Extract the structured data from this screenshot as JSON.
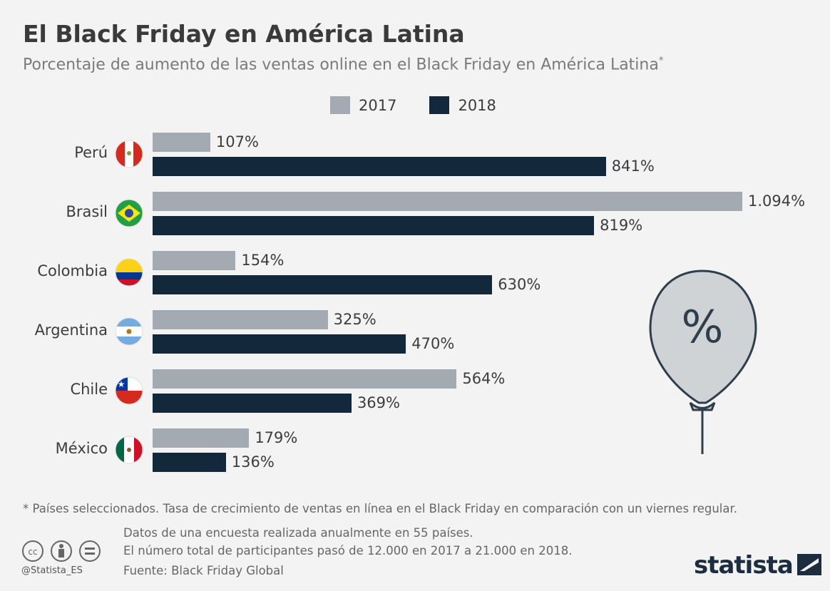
{
  "title": "El Black Friday en América Latina",
  "subtitle": "Porcentaje de aumento de las ventas online en el Black Friday en América Latina",
  "subtitle_mark": "*",
  "chart_data": {
    "type": "bar",
    "orientation": "horizontal",
    "categories": [
      "Perú",
      "Brasil",
      "Colombia",
      "Argentina",
      "Chile",
      "México"
    ],
    "series": [
      {
        "name": "2017",
        "color": "#a3aab1",
        "values": [
          107,
          1094,
          154,
          325,
          564,
          179
        ],
        "labels": [
          "107%",
          "1.094%",
          "154%",
          "325%",
          "564%",
          "179%"
        ]
      },
      {
        "name": "2018",
        "color": "#13283a",
        "values": [
          841,
          819,
          630,
          470,
          369,
          136
        ],
        "labels": [
          "841%",
          "819%",
          "630%",
          "470%",
          "369%",
          "136%"
        ]
      }
    ],
    "legend": "top-center",
    "grid": false,
    "xlim": [
      0,
      1094
    ]
  },
  "balloon_icon": "%",
  "footnote": "* Países seleccionados. Tasa de crecimiento de ventas en línea en el Black Friday en comparación con un viernes regular.",
  "notes": [
    "Datos de una encuesta realizada anualmente en 55 países.",
    "El número total de participantes pasó de 12.000 en 2017 a 21.000 en 2018."
  ],
  "source": "Fuente: Black Friday Global",
  "handle": "@Statista_ES",
  "logo": "statista"
}
